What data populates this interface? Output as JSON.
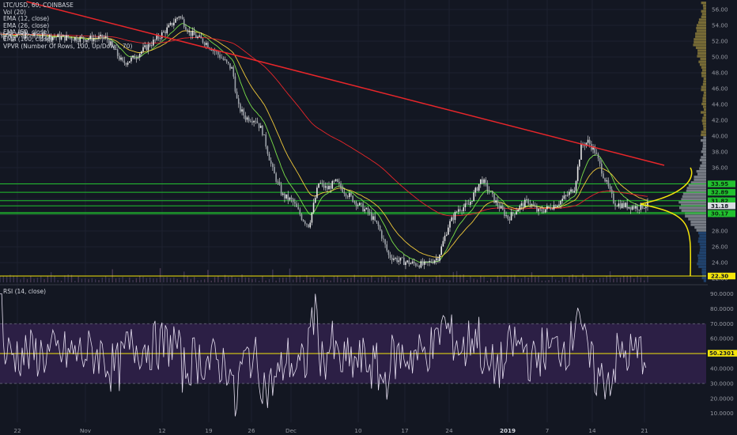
{
  "legend": {
    "symbol": "LTC/USD, 60, COINBASE",
    "indicators": [
      "Vol (20)",
      "EMA (12, close)",
      "EMA (26, close)",
      "EMA (50, close)",
      "EMA (100, close)",
      "VPVR (Number Of Rows, 100, Up/Down, 70)"
    ]
  },
  "rsi_title": "RSI (14, close)",
  "colors": {
    "background": "#131722",
    "trendline": "#e8262a",
    "support_lines": "#21c12e",
    "yellow": "#f5e60a",
    "candle_up": "#e7e7e7",
    "candle_down": "#e7e7e7",
    "ema12": "#7ae04a",
    "ema26": "#f0c93a",
    "ema100": "#e8262a",
    "rsi_line": "#e5def0",
    "rsi_band": "#2c1f45",
    "vp_up": "#234a7a",
    "vp_down": "#8a7a3a",
    "vp_gray": "#8a8e96"
  },
  "chart_data": [
    {
      "type": "candlestick",
      "title": "LTC/USD, 60, COINBASE",
      "x_tick_labels": [
        "22",
        "Nov",
        "12",
        "19",
        "26",
        "Dec",
        "10",
        "17",
        "24",
        "2019",
        "7",
        "14",
        "21"
      ],
      "y_tick_labels": [
        "22.00",
        "24.00",
        "26.00",
        "28.00",
        "30.00",
        "32.00",
        "34.00",
        "36.00",
        "38.00",
        "40.00",
        "42.00",
        "44.00",
        "46.00",
        "48.00",
        "50.00",
        "52.00",
        "54.00",
        "56.00"
      ],
      "ylim": [
        21.5,
        57
      ],
      "price_path": [
        [
          0,
          52.9
        ],
        [
          7,
          52.6
        ],
        [
          13,
          52.3
        ],
        [
          16,
          52.4
        ],
        [
          18.5,
          49.2
        ],
        [
          20,
          49.8
        ],
        [
          22,
          51.2
        ],
        [
          23.5,
          52.2
        ],
        [
          25.5,
          53.8
        ],
        [
          27,
          55.3
        ],
        [
          28.5,
          53.1
        ],
        [
          31,
          51.8
        ],
        [
          33,
          50.2
        ],
        [
          35,
          48.4
        ],
        [
          35.8,
          43.8
        ],
        [
          37,
          42.3
        ],
        [
          38.5,
          42.1
        ],
        [
          39.5,
          40.6
        ],
        [
          41,
          35.8
        ],
        [
          42.5,
          32.5
        ],
        [
          44,
          31.8
        ],
        [
          45.5,
          29.6
        ],
        [
          46.5,
          28.7
        ],
        [
          48,
          34.1
        ],
        [
          49.2,
          33.3
        ],
        [
          50.5,
          34.2
        ],
        [
          52,
          32.9
        ],
        [
          54,
          31.3
        ],
        [
          55.5,
          30.3
        ],
        [
          57,
          28.5
        ],
        [
          58.5,
          24.9
        ],
        [
          60,
          24.3
        ],
        [
          62,
          23.9
        ],
        [
          64,
          23.7
        ],
        [
          66,
          24.7
        ],
        [
          67.5,
          28.7
        ],
        [
          69,
          30.8
        ],
        [
          70.5,
          31.2
        ],
        [
          72.5,
          34.6
        ],
        [
          74.5,
          31.8
        ],
        [
          76.5,
          29.6
        ],
        [
          78,
          30.9
        ],
        [
          79.5,
          31.8
        ],
        [
          81,
          30.4
        ],
        [
          82.5,
          30.9
        ],
        [
          84,
          31.5
        ],
        [
          85.5,
          32.6
        ],
        [
          86.5,
          33.5
        ],
        [
          87.5,
          38.7
        ],
        [
          88.5,
          39.3
        ],
        [
          89.5,
          38.2
        ],
        [
          91,
          34.7
        ],
        [
          92.5,
          31.5
        ],
        [
          94,
          31.2
        ],
        [
          96,
          31.0
        ],
        [
          97.5,
          31.3
        ]
      ],
      "horizontal_levels": [
        33.95,
        32.89,
        31.82,
        31.18,
        30.33,
        30.17,
        22.3
      ],
      "price_labels": [
        "33.95",
        "32.89",
        "31.82",
        "31.18",
        "30.33",
        "30.17",
        "22.30"
      ],
      "trendline": {
        "from": [
          4,
          57.0
        ],
        "to": [
          100,
          36.3
        ]
      }
    },
    {
      "type": "line",
      "title": "RSI (14, close)",
      "y_tick_labels": [
        "10.0000",
        "20.0000",
        "30.0000",
        "40.0000",
        "50.0000",
        "60.0000",
        "70.0000",
        "80.0000",
        "90.0000"
      ],
      "ylim": [
        4,
        95
      ],
      "band": [
        30,
        70
      ],
      "midline": 50,
      "current_value_label": "50.2301"
    }
  ]
}
